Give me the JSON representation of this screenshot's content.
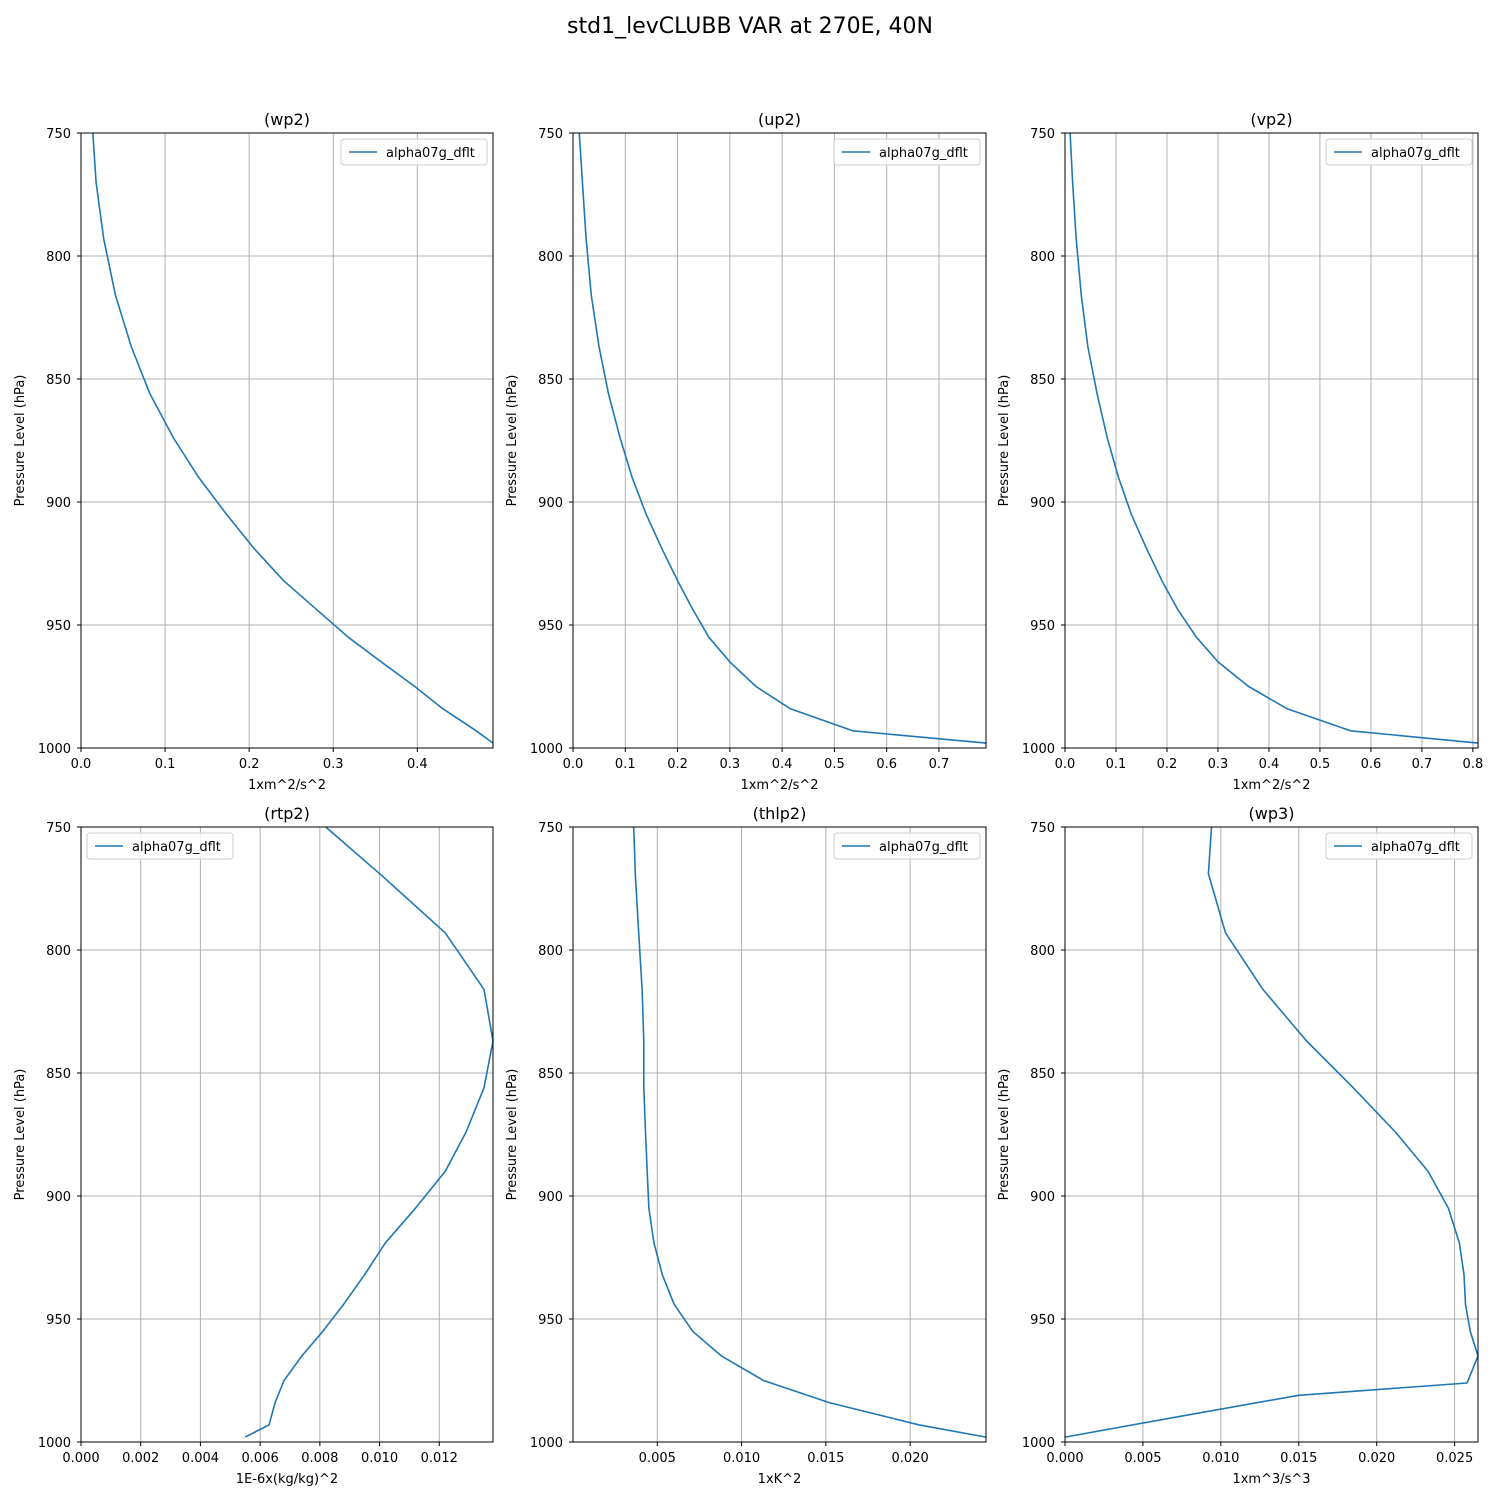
{
  "title": "std1_levCLUBB VAR at 270E, 40N",
  "colors": {
    "series": "#1f77b4",
    "grid": "#b0b0b0",
    "frame": "#000000",
    "legend_border": "#cccccc"
  },
  "chart_data": [
    {
      "type": "line",
      "title": "(wp2)",
      "xlabel": "1xm^2/s^2",
      "ylabel": "Pressure Level (hPa)",
      "xlim": [
        0,
        0.49
      ],
      "ylim": [
        1000,
        750
      ],
      "y_inverted": true,
      "xticks": [
        0.0,
        0.1,
        0.2,
        0.3,
        0.4
      ],
      "xtick_labels": [
        "0.0",
        "0.1",
        "0.2",
        "0.3",
        "0.4"
      ],
      "yticks": [
        750,
        800,
        850,
        900,
        950,
        1000
      ],
      "ytick_labels": [
        "750",
        "800",
        "850",
        "900",
        "950",
        "1000"
      ],
      "grid": true,
      "legend_position": "upper right",
      "series": [
        {
          "name": "alpha07g_dflt",
          "x": [
            0.014,
            0.018,
            0.027,
            0.041,
            0.06,
            0.082,
            0.11,
            0.14,
            0.173,
            0.206,
            0.241,
            0.281,
            0.318,
            0.357,
            0.397,
            0.43,
            0.47,
            0.49
          ],
          "y": [
            750,
            770,
            793,
            816,
            837,
            856,
            874,
            890,
            905,
            919,
            932,
            944,
            955,
            965,
            975,
            984,
            993,
            998
          ]
        }
      ]
    },
    {
      "type": "line",
      "title": "(up2)",
      "xlabel": "1xm^2/s^2",
      "ylabel": "Pressure Level (hPa)",
      "xlim": [
        0,
        0.79
      ],
      "ylim": [
        1000,
        750
      ],
      "y_inverted": true,
      "xticks": [
        0.0,
        0.1,
        0.2,
        0.3,
        0.4,
        0.5,
        0.6,
        0.7
      ],
      "xtick_labels": [
        "0.0",
        "0.1",
        "0.2",
        "0.3",
        "0.4",
        "0.5",
        "0.6",
        "0.7"
      ],
      "yticks": [
        750,
        800,
        850,
        900,
        950,
        1000
      ],
      "ytick_labels": [
        "750",
        "800",
        "850",
        "900",
        "950",
        "1000"
      ],
      "grid": true,
      "legend_position": "upper right",
      "series": [
        {
          "name": "alpha07g_dflt",
          "x": [
            0.012,
            0.018,
            0.025,
            0.035,
            0.05,
            0.068,
            0.09,
            0.113,
            0.14,
            0.17,
            0.2,
            0.23,
            0.26,
            0.3,
            0.35,
            0.415,
            0.535,
            0.79
          ],
          "y": [
            750,
            770,
            793,
            816,
            837,
            856,
            874,
            890,
            905,
            919,
            932,
            944,
            955,
            965,
            975,
            984,
            993,
            998
          ]
        }
      ]
    },
    {
      "type": "line",
      "title": "(vp2)",
      "xlabel": "1xm^2/s^2",
      "ylabel": "Pressure Level (hPa)",
      "xlim": [
        0,
        0.81
      ],
      "ylim": [
        1000,
        750
      ],
      "y_inverted": true,
      "xticks": [
        0.0,
        0.1,
        0.2,
        0.3,
        0.4,
        0.5,
        0.6,
        0.7,
        0.8
      ],
      "xtick_labels": [
        "0.0",
        "0.1",
        "0.2",
        "0.3",
        "0.4",
        "0.5",
        "0.6",
        "0.7",
        "0.8"
      ],
      "yticks": [
        750,
        800,
        850,
        900,
        950,
        1000
      ],
      "ytick_labels": [
        "750",
        "800",
        "850",
        "900",
        "950",
        "1000"
      ],
      "grid": true,
      "legend_position": "upper right",
      "series": [
        {
          "name": "alpha07g_dflt",
          "x": [
            0.01,
            0.015,
            0.022,
            0.032,
            0.045,
            0.063,
            0.083,
            0.105,
            0.13,
            0.16,
            0.19,
            0.222,
            0.258,
            0.3,
            0.36,
            0.435,
            0.56,
            0.81
          ],
          "y": [
            750,
            770,
            793,
            816,
            837,
            856,
            874,
            890,
            905,
            919,
            932,
            944,
            955,
            965,
            975,
            984,
            993,
            998
          ]
        }
      ]
    },
    {
      "type": "line",
      "title": "(rtp2)",
      "xlabel": "1E-6x(kg/kg)^2",
      "ylabel": "Pressure Level (hPa)",
      "xlim": [
        0,
        0.0138
      ],
      "ylim": [
        1000,
        750
      ],
      "y_inverted": true,
      "xticks": [
        0.0,
        0.002,
        0.004,
        0.006,
        0.008,
        0.01,
        0.012
      ],
      "xtick_labels": [
        "0.000",
        "0.002",
        "0.004",
        "0.006",
        "0.008",
        "0.010",
        "0.012"
      ],
      "yticks": [
        750,
        800,
        850,
        900,
        950,
        1000
      ],
      "ytick_labels": [
        "750",
        "800",
        "850",
        "900",
        "950",
        "1000"
      ],
      "grid": true,
      "legend_position": "upper left",
      "series": [
        {
          "name": "alpha07g_dflt",
          "x": [
            0.0082,
            0.0101,
            0.0122,
            0.0135,
            0.0138,
            0.0135,
            0.0129,
            0.0122,
            0.0112,
            0.0102,
            0.0095,
            0.0088,
            0.0081,
            0.0074,
            0.0068,
            0.0065,
            0.0063,
            0.0055
          ],
          "y": [
            750,
            770,
            793,
            816,
            837,
            856,
            874,
            890,
            905,
            919,
            932,
            944,
            955,
            965,
            975,
            984,
            993,
            998
          ]
        }
      ]
    },
    {
      "type": "line",
      "title": "(thlp2)",
      "xlabel": "1xK^2",
      "ylabel": "Pressure Level (hPa)",
      "xlim": [
        0,
        0.0245
      ],
      "ylim": [
        1000,
        750
      ],
      "y_inverted": true,
      "xticks": [
        0.005,
        0.01,
        0.015,
        0.02
      ],
      "xtick_labels": [
        "0.005",
        "0.010",
        "0.015",
        "0.020"
      ],
      "yticks": [
        750,
        800,
        850,
        900,
        950,
        1000
      ],
      "ytick_labels": [
        "750",
        "800",
        "850",
        "900",
        "950",
        "1000"
      ],
      "grid": true,
      "legend_position": "upper right",
      "series": [
        {
          "name": "alpha07g_dflt",
          "x": [
            0.0036,
            0.0037,
            0.0039,
            0.0041,
            0.0042,
            0.0042,
            0.0043,
            0.0044,
            0.0045,
            0.0048,
            0.0053,
            0.006,
            0.0071,
            0.0088,
            0.0113,
            0.0152,
            0.0205,
            0.0245
          ],
          "y": [
            750,
            770,
            793,
            816,
            837,
            856,
            874,
            890,
            905,
            919,
            932,
            944,
            955,
            965,
            975,
            984,
            993,
            998
          ]
        }
      ]
    },
    {
      "type": "line",
      "title": "(wp3)",
      "xlabel": "1xm^3/s^3",
      "ylabel": "Pressure Level (hPa)",
      "xlim": [
        0,
        0.0265
      ],
      "ylim": [
        1000,
        750
      ],
      "y_inverted": true,
      "xticks": [
        0.0,
        0.005,
        0.01,
        0.015,
        0.02,
        0.025
      ],
      "xtick_labels": [
        "0.000",
        "0.005",
        "0.010",
        "0.015",
        "0.020",
        "0.025"
      ],
      "yticks": [
        750,
        800,
        850,
        900,
        950,
        1000
      ],
      "ytick_labels": [
        "750",
        "800",
        "850",
        "900",
        "950",
        "1000"
      ],
      "grid": true,
      "legend_position": "upper right",
      "series": [
        {
          "name": "alpha07g_dflt",
          "x": [
            0.0094,
            0.0092,
            0.0103,
            0.0127,
            0.0155,
            0.0185,
            0.0212,
            0.0233,
            0.0246,
            0.0253,
            0.0256,
            0.0257,
            0.026,
            0.0265,
            0.0258,
            0.015,
            0.007,
            0.0
          ],
          "y": [
            750,
            769,
            793,
            816,
            837,
            856,
            874,
            890,
            905,
            919,
            932,
            944,
            955,
            965,
            976,
            981,
            990,
            998
          ]
        }
      ]
    }
  ]
}
